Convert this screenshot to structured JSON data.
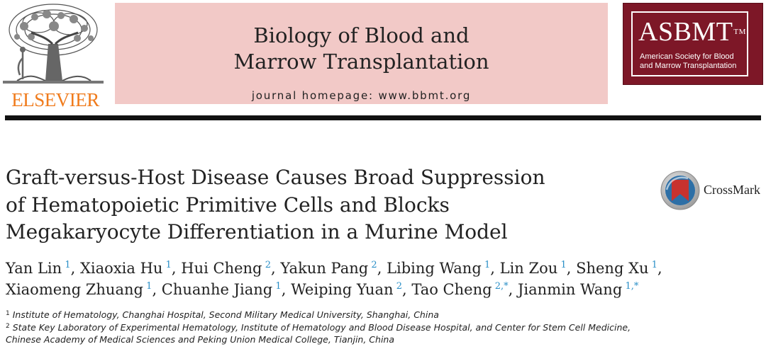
{
  "publisher": {
    "logo_text": "ELSEVIER"
  },
  "journal": {
    "title_line1": "Biology of Blood and",
    "title_line2": "Marrow Transplantation",
    "homepage": "journal homepage: www.bbmt.org"
  },
  "society": {
    "acronym": "ASBMT",
    "trademark": "TM",
    "full_name_line1": "American Society for Blood",
    "full_name_line2": "and Marrow Transplantation"
  },
  "article": {
    "title_lines": [
      "Graft-versus-Host Disease Causes Broad Suppression",
      "of Hematopoietic Primitive Cells and Blocks",
      "Megakaryocyte Differentiation in a Murine Model"
    ],
    "crossmark_label": "CrossMark",
    "author_lines": [
      [
        {
          "name": "Yan Lin",
          "aff": "1"
        },
        {
          "name": "Xiaoxia Hu",
          "aff": "1"
        },
        {
          "name": "Hui Cheng",
          "aff": "2"
        },
        {
          "name": "Yakun Pang",
          "aff": "2"
        },
        {
          "name": "Libing Wang",
          "aff": "1"
        },
        {
          "name": "Lin Zou",
          "aff": "1"
        },
        {
          "name": "Sheng Xu",
          "aff": "1"
        }
      ],
      [
        {
          "name": "Xiaomeng Zhuang",
          "aff": "1"
        },
        {
          "name": "Chuanhe Jiang",
          "aff": "1"
        },
        {
          "name": "Weiping Yuan",
          "aff": "2"
        },
        {
          "name": "Tao Cheng",
          "aff": "2,*"
        },
        {
          "name": "Jianmin Wang",
          "aff": "1,*"
        }
      ]
    ],
    "affiliations": [
      {
        "num": "1",
        "lines": [
          "Institute of Hematology, Changhai Hospital, Second Military Medical University, Shanghai, China"
        ]
      },
      {
        "num": "2",
        "lines": [
          "State Key Laboratory of Experimental Hematology, Institute of Hematology and Blood Disease Hospital, and Center for Stem Cell Medicine,",
          "Chinese Academy of Medical Sciences and Peking Union Medical College, Tianjin, China"
        ]
      }
    ]
  }
}
